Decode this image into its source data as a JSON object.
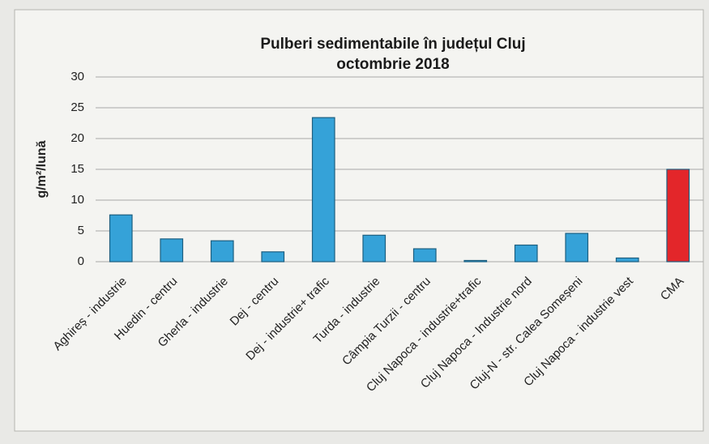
{
  "chart_data": {
    "type": "bar",
    "title": [
      "Pulberi sedimentabile în județul Cluj",
      "octombrie 2018"
    ],
    "ylabel": "g/m²/lună",
    "categories": [
      "Aghireș - industrie",
      "Huedin - centru",
      "Gherla - industrie",
      "Dej - centru",
      "Dej - industrie+ trafic",
      "Turda - industrie",
      "Câmpia Turzii - centru",
      "Cluj Napoca - industrie+trafic",
      "Cluj Napoca - Industrie nord",
      "Cluj-N - str. Calea Someșeni",
      "Cluj Napoca - industrie vest",
      "CMA"
    ],
    "values": [
      7.6,
      3.7,
      3.4,
      1.6,
      23.4,
      4.3,
      2.1,
      0.2,
      2.7,
      4.6,
      0.6,
      15
    ],
    "colors": [
      "#35a2d8",
      "#35a2d8",
      "#35a2d8",
      "#35a2d8",
      "#35a2d8",
      "#35a2d8",
      "#35a2d8",
      "#35a2d8",
      "#35a2d8",
      "#35a2d8",
      "#35a2d8",
      "#e3262a"
    ],
    "ylim": [
      0,
      30
    ],
    "yticks": [
      0,
      5,
      10,
      15,
      20,
      25,
      30
    ],
    "grid": true
  }
}
